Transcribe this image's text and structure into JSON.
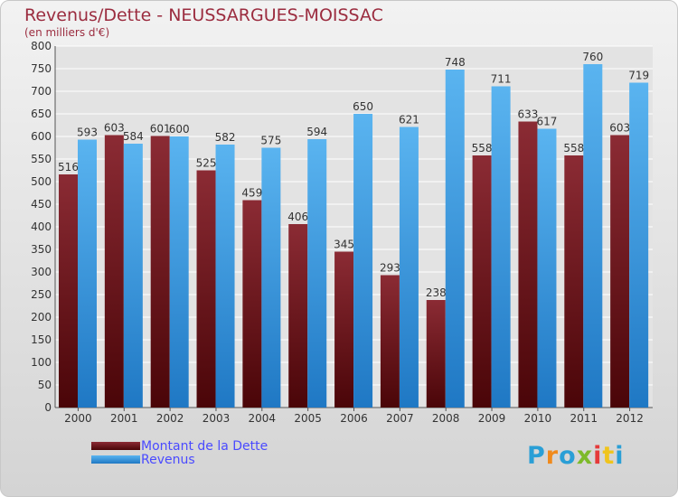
{
  "chart_data": {
    "type": "bar",
    "title": "Revenus/Dette - NEUSSARGUES-MOISSAC",
    "subtitle": "(en milliers d'€)",
    "categories": [
      "2000",
      "2001",
      "2002",
      "2003",
      "2004",
      "2005",
      "2006",
      "2007",
      "2008",
      "2009",
      "2010",
      "2011",
      "2012"
    ],
    "series": [
      {
        "name": "Montant de la Dette",
        "color": "#6b1015",
        "values": [
          516,
          603,
          601,
          525,
          459,
          406,
          345,
          293,
          238,
          558,
          633,
          558,
          603
        ]
      },
      {
        "name": "Revenus",
        "color": "#3d9de0",
        "values": [
          593,
          584,
          600,
          582,
          575,
          594,
          650,
          621,
          748,
          711,
          617,
          760,
          719
        ]
      }
    ],
    "ylim": [
      0,
      800
    ],
    "yticks": [
      0,
      50,
      100,
      150,
      200,
      250,
      300,
      350,
      400,
      450,
      500,
      550,
      600,
      650,
      700,
      750,
      800
    ],
    "grid": true,
    "legend": "bottom-left"
  },
  "logo": {
    "text": "Proxiti",
    "colors": [
      "#2a9fd6",
      "#f08a1c",
      "#2a9fd6",
      "#7dba2a",
      "#e53a3a",
      "#f0c41c",
      "#2a9fd6"
    ]
  }
}
